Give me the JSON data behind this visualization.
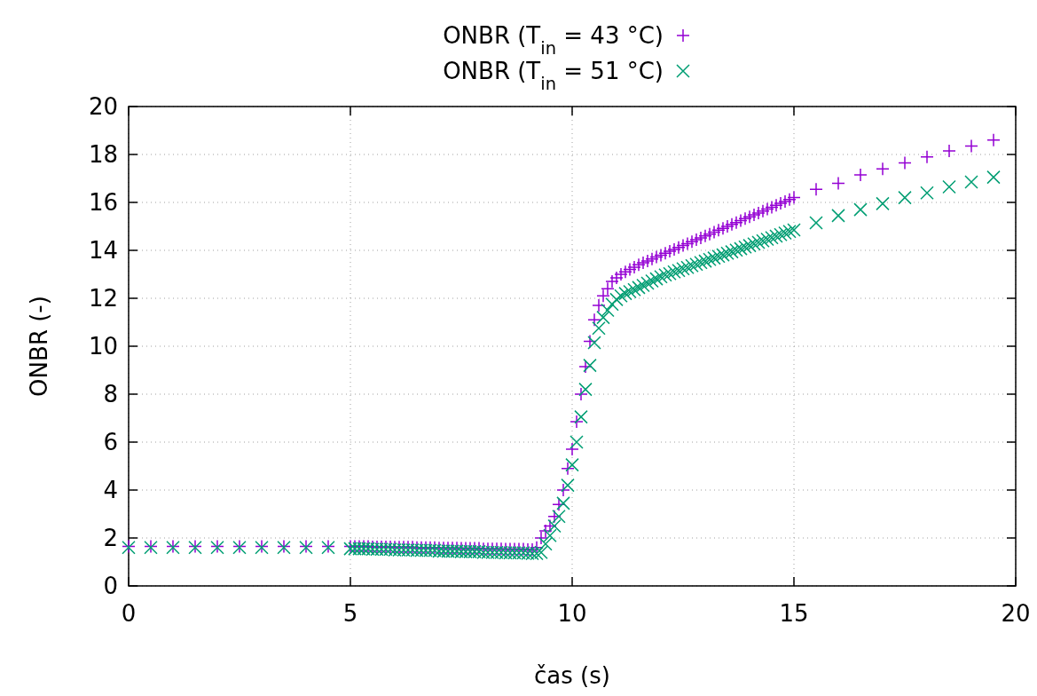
{
  "chart_data": {
    "type": "scatter",
    "xlabel": "čas (s)",
    "ylabel": "ONBR (-)",
    "xlim": [
      0,
      20
    ],
    "ylim": [
      0,
      20
    ],
    "xticks": [
      0,
      5,
      10,
      15,
      20
    ],
    "yticks": [
      0,
      2,
      4,
      6,
      8,
      10,
      12,
      14,
      16,
      18,
      20
    ],
    "grid": true,
    "legend": "top",
    "x": [
      0,
      0.5,
      1,
      1.5,
      2,
      2.5,
      3,
      3.5,
      4,
      4.5,
      5,
      5.1,
      5.2,
      5.3,
      5.4,
      5.5,
      5.6,
      5.7,
      5.8,
      5.9,
      6,
      6.1,
      6.2,
      6.3,
      6.4,
      6.5,
      6.6,
      6.7,
      6.8,
      6.9,
      7,
      7.1,
      7.2,
      7.3,
      7.4,
      7.5,
      7.6,
      7.7,
      7.8,
      7.9,
      8,
      8.1,
      8.2,
      8.3,
      8.4,
      8.5,
      8.6,
      8.7,
      8.8,
      8.9,
      9,
      9.1,
      9.2,
      9.3,
      9.4,
      9.5,
      9.6,
      9.7,
      9.8,
      9.9,
      10,
      10.1,
      10.2,
      10.3,
      10.4,
      10.5,
      10.6,
      10.7,
      10.8,
      10.9,
      11,
      11.1,
      11.2,
      11.3,
      11.4,
      11.5,
      11.6,
      11.7,
      11.8,
      11.9,
      12,
      12.1,
      12.2,
      12.3,
      12.4,
      12.5,
      12.6,
      12.7,
      12.8,
      12.9,
      13,
      13.1,
      13.2,
      13.3,
      13.4,
      13.5,
      13.6,
      13.7,
      13.8,
      13.9,
      14,
      14.1,
      14.2,
      14.3,
      14.4,
      14.5,
      14.6,
      14.7,
      14.8,
      14.9,
      15,
      15.5,
      16,
      16.5,
      17,
      17.5,
      18,
      18.5,
      19,
      19.5
    ],
    "series": [
      {
        "name": "ONBR (T$_{in}$ = 43 °C)",
        "color": "#9400d3",
        "marker": "plus",
        "values": [
          1.65,
          1.65,
          1.65,
          1.65,
          1.65,
          1.65,
          1.65,
          1.65,
          1.65,
          1.65,
          1.65,
          1.65,
          1.65,
          1.65,
          1.65,
          1.63,
          1.63,
          1.63,
          1.63,
          1.63,
          1.62,
          1.62,
          1.62,
          1.62,
          1.62,
          1.6,
          1.6,
          1.6,
          1.6,
          1.6,
          1.58,
          1.58,
          1.58,
          1.58,
          1.58,
          1.57,
          1.57,
          1.57,
          1.57,
          1.57,
          1.55,
          1.55,
          1.55,
          1.55,
          1.55,
          1.54,
          1.54,
          1.54,
          1.54,
          1.54,
          1.52,
          1.52,
          1.6,
          2.0,
          2.3,
          2.5,
          2.9,
          3.4,
          4.0,
          4.9,
          5.7,
          6.85,
          8.0,
          9.15,
          10.2,
          11.1,
          11.7,
          12.1,
          12.4,
          12.7,
          12.85,
          13.0,
          13.1,
          13.2,
          13.3,
          13.4,
          13.48,
          13.56,
          13.64,
          13.72,
          13.8,
          13.88,
          13.96,
          14.04,
          14.12,
          14.2,
          14.28,
          14.36,
          14.44,
          14.52,
          14.6,
          14.68,
          14.76,
          14.84,
          14.92,
          15.0,
          15.08,
          15.16,
          15.24,
          15.32,
          15.4,
          15.48,
          15.56,
          15.64,
          15.72,
          15.8,
          15.88,
          15.96,
          16.04,
          16.12,
          16.2,
          16.55,
          16.8,
          17.15,
          17.4,
          17.65,
          17.9,
          18.15,
          18.35,
          18.6
        ]
      },
      {
        "name": "ONBR (T$_{in}$ = 51 °C)",
        "color": "#009e73",
        "marker": "cross",
        "values": [
          1.6,
          1.6,
          1.6,
          1.6,
          1.6,
          1.6,
          1.6,
          1.6,
          1.6,
          1.6,
          1.55,
          1.55,
          1.55,
          1.55,
          1.55,
          1.53,
          1.53,
          1.53,
          1.53,
          1.53,
          1.5,
          1.5,
          1.5,
          1.5,
          1.5,
          1.48,
          1.48,
          1.48,
          1.48,
          1.48,
          1.45,
          1.45,
          1.45,
          1.45,
          1.45,
          1.43,
          1.43,
          1.43,
          1.43,
          1.43,
          1.4,
          1.4,
          1.4,
          1.4,
          1.4,
          1.38,
          1.38,
          1.38,
          1.38,
          1.38,
          1.36,
          1.35,
          1.35,
          1.4,
          1.75,
          2.1,
          2.5,
          2.9,
          3.45,
          4.2,
          5.05,
          6.0,
          7.05,
          8.2,
          9.2,
          10.15,
          10.75,
          11.2,
          11.5,
          11.75,
          11.95,
          12.1,
          12.2,
          12.28,
          12.36,
          12.45,
          12.54,
          12.63,
          12.72,
          12.81,
          12.9,
          12.97,
          13.03,
          13.1,
          13.16,
          13.23,
          13.29,
          13.36,
          13.42,
          13.49,
          13.55,
          13.62,
          13.68,
          13.75,
          13.81,
          13.88,
          13.94,
          14.01,
          14.07,
          14.14,
          14.2,
          14.27,
          14.33,
          14.4,
          14.46,
          14.53,
          14.59,
          14.66,
          14.72,
          14.79,
          14.85,
          15.15,
          15.45,
          15.7,
          15.95,
          16.2,
          16.4,
          16.65,
          16.85,
          17.05
        ]
      }
    ]
  }
}
